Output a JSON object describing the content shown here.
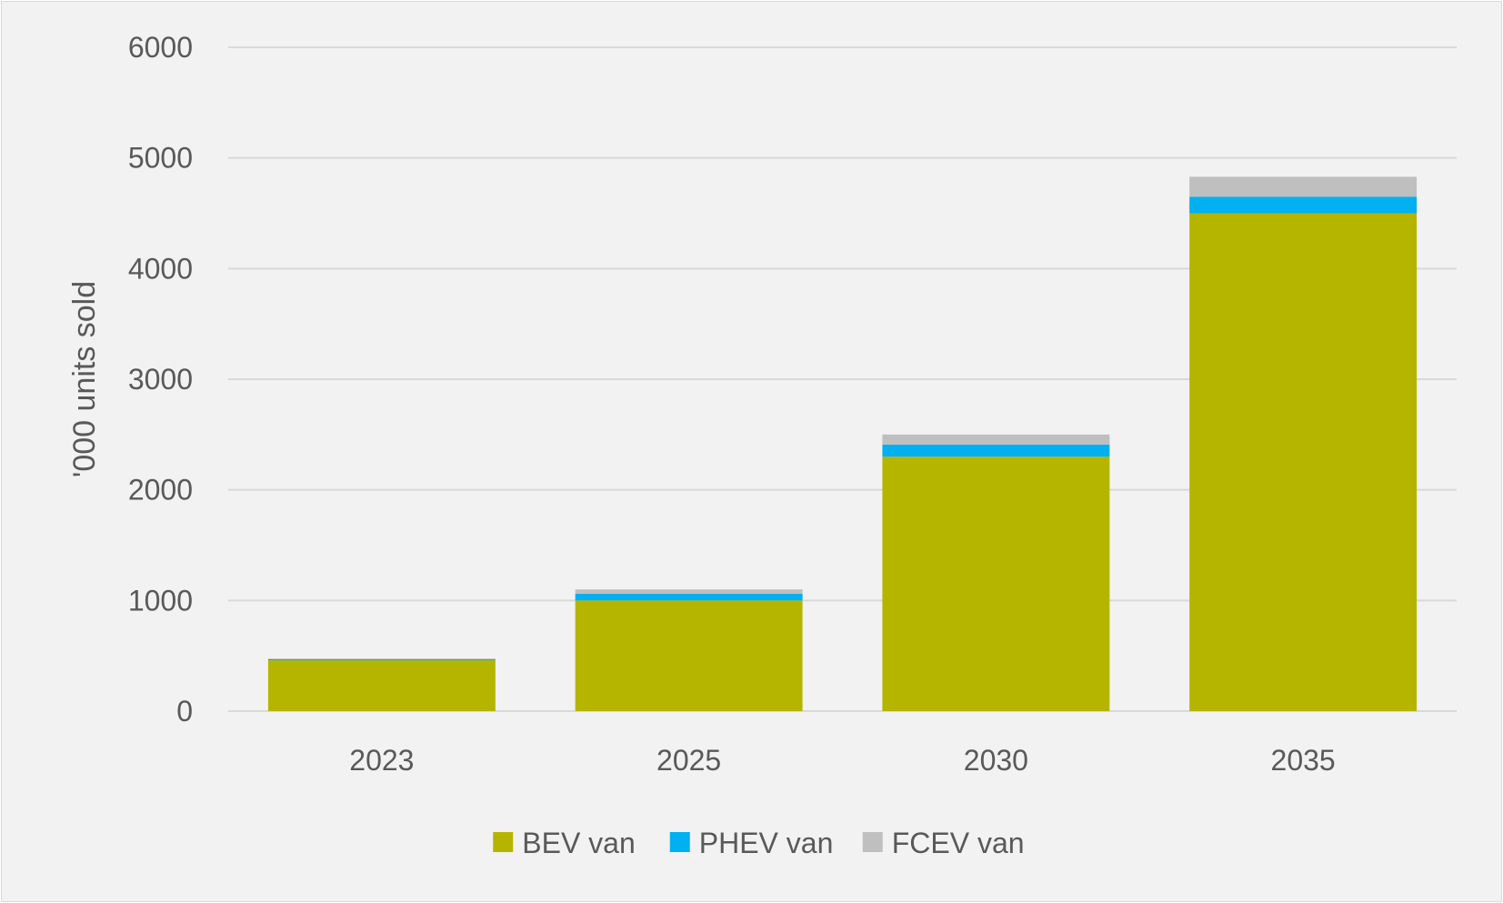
{
  "chart_data": {
    "type": "bar",
    "stacked": true,
    "categories": [
      "2023",
      "2025",
      "2030",
      "2035"
    ],
    "series": [
      {
        "name": "BEV van",
        "color": "#b5b500",
        "values": [
          460,
          1000,
          2300,
          4500
        ]
      },
      {
        "name": "PHEV van",
        "color": "#00b0f0",
        "values": [
          10,
          60,
          110,
          150
        ]
      },
      {
        "name": "FCEV van",
        "color": "#bfbfbf",
        "values": [
          5,
          40,
          90,
          180
        ]
      }
    ],
    "title": "",
    "xlabel": "",
    "ylabel": "'000 units sold",
    "ylim": [
      0,
      6000
    ],
    "yticks": [
      0,
      1000,
      2000,
      3000,
      4000,
      5000,
      6000
    ],
    "grid": true,
    "legend": "bottom-center"
  }
}
